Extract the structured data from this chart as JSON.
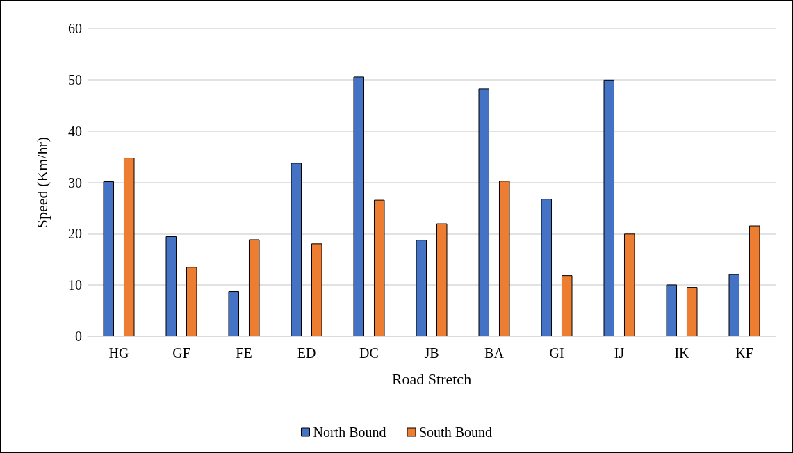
{
  "chart_data": {
    "type": "bar",
    "xlabel": "Road Stretch",
    "ylabel": "Speed (Km/hr)",
    "categories": [
      "HG",
      "GF",
      "FE",
      "ED",
      "DC",
      "JB",
      "BA",
      "GI",
      "IJ",
      "IK",
      "KF"
    ],
    "series": [
      {
        "name": "North Bound",
        "color": "#4472c4",
        "values": [
          30.2,
          19.5,
          8.8,
          33.8,
          50.6,
          18.8,
          48.3,
          26.8,
          50.0,
          10.1,
          12.1
        ]
      },
      {
        "name": "South Bound",
        "color": "#ed7d31",
        "values": [
          34.8,
          13.5,
          18.9,
          18.1,
          26.6,
          22.0,
          30.3,
          11.9,
          20.0,
          9.6,
          21.6
        ]
      }
    ],
    "ylim": [
      0,
      60
    ],
    "yticks": [
      0,
      10,
      20,
      30,
      40,
      50,
      60
    ],
    "grid": "y",
    "legend": "bottom"
  }
}
